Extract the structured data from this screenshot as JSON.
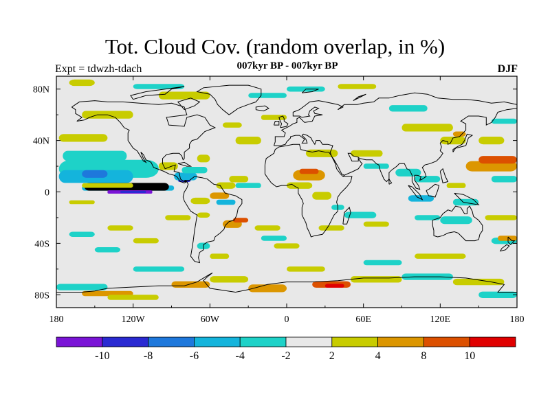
{
  "map": {
    "title": "Tot. Cloud Cov. (random overlap, in %)",
    "subtitle": "007kyr BP - 007kyr BP",
    "experiment_label": "Expt = tdwzh-tdach",
    "season": "DJF",
    "projection": "cylindrical-equidistant",
    "lon_range": [
      -180,
      180
    ],
    "lat_range": [
      -90,
      90
    ],
    "lon_tick_labels": [
      "180",
      "120W",
      "60W",
      "0",
      "60E",
      "120E",
      "180"
    ],
    "lat_tick_labels": [
      "80N",
      "40N",
      "0",
      "40S",
      "80S"
    ],
    "background_color": "#e8e8e8",
    "colorbar": {
      "colors": [
        "#7a14d6",
        "#2a2ad2",
        "#1e78dc",
        "#14b4dc",
        "#1ed2c8",
        "#e8e8e8",
        "#c8cc00",
        "#dc9600",
        "#dc5000",
        "#e00000"
      ],
      "labels": [
        "-10",
        "-8",
        "-6",
        "-4",
        "-2",
        "2",
        "4",
        "8",
        "10"
      ]
    }
  }
}
